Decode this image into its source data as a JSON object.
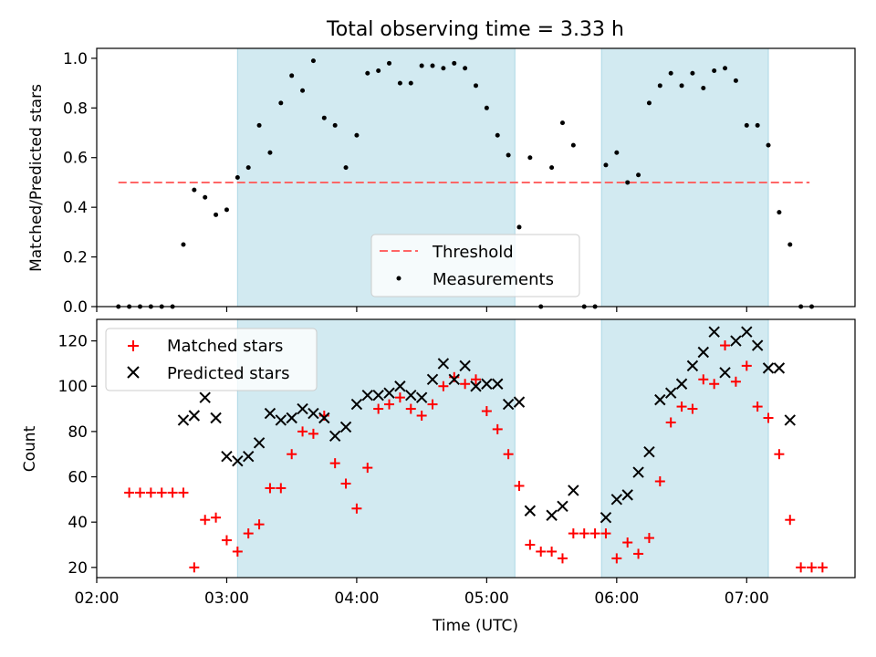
{
  "chart_data": [
    {
      "type": "scatter",
      "title": "Total observing time = 3.33 h",
      "xlabel": "",
      "ylabel": "Matched/Predicted stars",
      "ylim": [
        0,
        1.04
      ],
      "yticks": [
        "0.0",
        "0.2",
        "0.4",
        "0.6",
        "0.8",
        "1.0"
      ],
      "shaded_intervals": [
        [
          "03:05",
          "05:13"
        ],
        [
          "05:53",
          "07:10"
        ]
      ],
      "shade_color": "#add8e6",
      "legend_position": "lower center",
      "threshold": {
        "name": "Threshold",
        "y": 0.5,
        "x_start": "02:10",
        "x_end": "07:29",
        "color": "#ff6666"
      },
      "series": [
        {
          "name": "Measurements",
          "color": "#000000",
          "points": [
            [
              "02:10",
              0
            ],
            [
              "02:15",
              0
            ],
            [
              "02:20",
              0
            ],
            [
              "02:25",
              0
            ],
            [
              "02:30",
              0
            ],
            [
              "02:35",
              0
            ],
            [
              "02:40",
              0.25
            ],
            [
              "02:45",
              0.47
            ],
            [
              "02:50",
              0.44
            ],
            [
              "02:55",
              0.37
            ],
            [
              "03:00",
              0.39
            ],
            [
              "03:05",
              0.52
            ],
            [
              "03:10",
              0.56
            ],
            [
              "03:15",
              0.73
            ],
            [
              "03:20",
              0.62
            ],
            [
              "03:25",
              0.82
            ],
            [
              "03:30",
              0.93
            ],
            [
              "03:35",
              0.87
            ],
            [
              "03:40",
              0.99
            ],
            [
              "03:45",
              0.76
            ],
            [
              "03:50",
              0.73
            ],
            [
              "03:55",
              0.56
            ],
            [
              "04:00",
              0.69
            ],
            [
              "04:05",
              0.94
            ],
            [
              "04:10",
              0.95
            ],
            [
              "04:15",
              0.98
            ],
            [
              "04:20",
              0.9
            ],
            [
              "04:25",
              0.9
            ],
            [
              "04:30",
              0.97
            ],
            [
              "04:35",
              0.97
            ],
            [
              "04:40",
              0.96
            ],
            [
              "04:45",
              0.98
            ],
            [
              "04:50",
              0.96
            ],
            [
              "04:55",
              0.89
            ],
            [
              "05:00",
              0.8
            ],
            [
              "05:05",
              0.69
            ],
            [
              "05:10",
              0.61
            ],
            [
              "05:15",
              0.32
            ],
            [
              "05:20",
              0.6
            ],
            [
              "05:25",
              0
            ],
            [
              "05:30",
              0.56
            ],
            [
              "05:35",
              0.74
            ],
            [
              "05:40",
              0.65
            ],
            [
              "05:45",
              0
            ],
            [
              "05:50",
              0
            ],
            [
              "05:55",
              0.57
            ],
            [
              "06:00",
              0.62
            ],
            [
              "06:05",
              0.5
            ],
            [
              "06:10",
              0.53
            ],
            [
              "06:15",
              0.82
            ],
            [
              "06:20",
              0.89
            ],
            [
              "06:25",
              0.94
            ],
            [
              "06:30",
              0.89
            ],
            [
              "06:35",
              0.94
            ],
            [
              "06:40",
              0.88
            ],
            [
              "06:45",
              0.95
            ],
            [
              "06:50",
              0.96
            ],
            [
              "06:55",
              0.91
            ],
            [
              "07:00",
              0.73
            ],
            [
              "07:05",
              0.73
            ],
            [
              "07:10",
              0.65
            ],
            [
              "07:15",
              0.38
            ],
            [
              "07:20",
              0.25
            ],
            [
              "07:25",
              0
            ],
            [
              "07:30",
              0
            ]
          ]
        }
      ]
    },
    {
      "type": "scatter",
      "title": "",
      "xlabel": "Time (UTC)",
      "ylabel": "Count",
      "ylim": [
        15.5,
        129.5
      ],
      "xlim": [
        "02:00",
        "07:50"
      ],
      "xticks": [
        "02:00",
        "03:00",
        "04:00",
        "05:00",
        "06:00",
        "07:00"
      ],
      "yticks": [
        "20",
        "40",
        "60",
        "80",
        "100",
        "120"
      ],
      "legend_position": "upper left",
      "series": [
        {
          "name": "Matched stars",
          "marker": "+",
          "color": "#ff0000",
          "points": [
            [
              "02:15",
              53
            ],
            [
              "02:20",
              53
            ],
            [
              "02:25",
              53
            ],
            [
              "02:30",
              53
            ],
            [
              "02:35",
              53
            ],
            [
              "02:40",
              53
            ],
            [
              "02:45",
              20
            ],
            [
              "02:50",
              41
            ],
            [
              "02:55",
              42
            ],
            [
              "03:00",
              32
            ],
            [
              "03:05",
              27
            ],
            [
              "03:10",
              35
            ],
            [
              "03:15",
              39
            ],
            [
              "03:20",
              55
            ],
            [
              "03:25",
              55
            ],
            [
              "03:30",
              70
            ],
            [
              "03:35",
              80
            ],
            [
              "03:40",
              79
            ],
            [
              "03:45",
              87
            ],
            [
              "03:50",
              66
            ],
            [
              "03:55",
              57
            ],
            [
              "04:00",
              46
            ],
            [
              "04:05",
              64
            ],
            [
              "04:10",
              90
            ],
            [
              "04:15",
              92
            ],
            [
              "04:20",
              95
            ],
            [
              "04:25",
              90
            ],
            [
              "04:30",
              87
            ],
            [
              "04:35",
              92
            ],
            [
              "04:40",
              100
            ],
            [
              "04:45",
              104
            ],
            [
              "04:50",
              101
            ],
            [
              "04:55",
              103
            ],
            [
              "05:00",
              89
            ],
            [
              "05:05",
              81
            ],
            [
              "05:10",
              70
            ],
            [
              "05:15",
              56
            ],
            [
              "05:20",
              30
            ],
            [
              "05:25",
              27
            ],
            [
              "05:30",
              27
            ],
            [
              "05:35",
              24
            ],
            [
              "05:40",
              35
            ],
            [
              "05:45",
              35
            ],
            [
              "05:50",
              35
            ],
            [
              "05:55",
              35
            ],
            [
              "06:00",
              24
            ],
            [
              "06:05",
              31
            ],
            [
              "06:10",
              26
            ],
            [
              "06:15",
              33
            ],
            [
              "06:20",
              58
            ],
            [
              "06:25",
              84
            ],
            [
              "06:30",
              91
            ],
            [
              "06:35",
              90
            ],
            [
              "06:40",
              103
            ],
            [
              "06:45",
              101
            ],
            [
              "06:50",
              118
            ],
            [
              "06:55",
              102
            ],
            [
              "07:00",
              109
            ],
            [
              "07:05",
              91
            ],
            [
              "07:10",
              86
            ],
            [
              "07:15",
              70
            ],
            [
              "07:20",
              41
            ],
            [
              "07:25",
              20
            ],
            [
              "07:30",
              20
            ],
            [
              "07:35",
              20
            ]
          ]
        },
        {
          "name": "Predicted stars",
          "marker": "x",
          "color": "#000000",
          "points": [
            [
              "02:40",
              85
            ],
            [
              "02:45",
              87
            ],
            [
              "02:50",
              95
            ],
            [
              "02:55",
              86
            ],
            [
              "03:00",
              69
            ],
            [
              "03:05",
              67
            ],
            [
              "03:10",
              69
            ],
            [
              "03:15",
              75
            ],
            [
              "03:20",
              88
            ],
            [
              "03:25",
              85
            ],
            [
              "03:30",
              86
            ],
            [
              "03:35",
              90
            ],
            [
              "03:40",
              88
            ],
            [
              "03:45",
              86
            ],
            [
              "03:50",
              78
            ],
            [
              "03:55",
              82
            ],
            [
              "04:00",
              92
            ],
            [
              "04:05",
              96
            ],
            [
              "04:10",
              96
            ],
            [
              "04:15",
              97
            ],
            [
              "04:20",
              100
            ],
            [
              "04:25",
              96
            ],
            [
              "04:30",
              95
            ],
            [
              "04:35",
              103
            ],
            [
              "04:40",
              110
            ],
            [
              "04:45",
              103
            ],
            [
              "04:50",
              109
            ],
            [
              "04:55",
              100
            ],
            [
              "05:00",
              101
            ],
            [
              "05:05",
              101
            ],
            [
              "05:10",
              92
            ],
            [
              "05:15",
              93
            ],
            [
              "05:20",
              45
            ],
            [
              "05:30",
              43
            ],
            [
              "05:35",
              47
            ],
            [
              "05:40",
              54
            ],
            [
              "05:55",
              42
            ],
            [
              "06:00",
              50
            ],
            [
              "06:05",
              52
            ],
            [
              "06:10",
              62
            ],
            [
              "06:15",
              71
            ],
            [
              "06:20",
              94
            ],
            [
              "06:25",
              97
            ],
            [
              "06:30",
              101
            ],
            [
              "06:35",
              109
            ],
            [
              "06:40",
              115
            ],
            [
              "06:45",
              124
            ],
            [
              "06:50",
              106
            ],
            [
              "06:55",
              120
            ],
            [
              "07:00",
              124
            ],
            [
              "07:05",
              118
            ],
            [
              "07:10",
              108
            ],
            [
              "07:15",
              108
            ],
            [
              "07:20",
              85
            ]
          ]
        }
      ]
    }
  ]
}
